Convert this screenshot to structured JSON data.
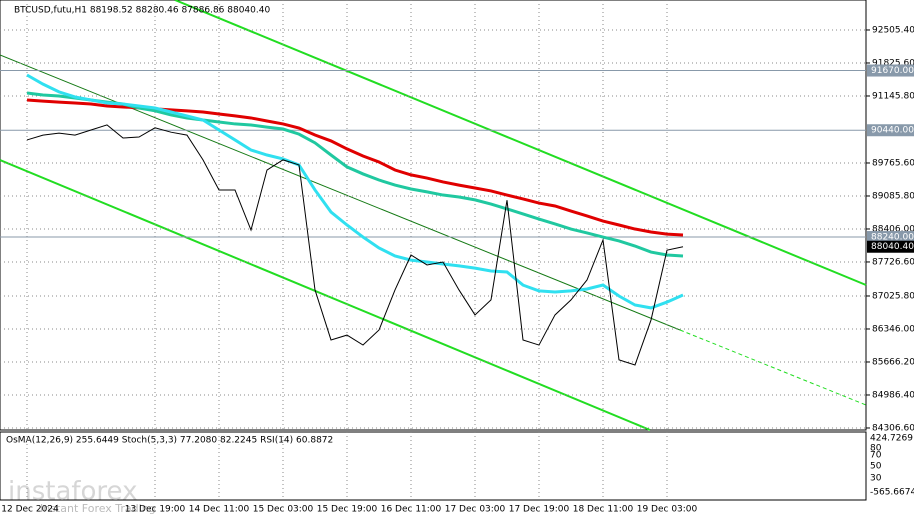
{
  "chart_data": {
    "type": "line",
    "title": "BTCUSD,futu,H1  88198.52 88280.46 87886.86 88040.40",
    "categories": [
      "12 Dec 2024",
      null,
      null,
      null,
      null,
      null,
      null,
      null,
      "13 Dec 19:00",
      null,
      null,
      null,
      "14 Dec 11:00",
      null,
      null,
      null,
      "15 Dec 03:00",
      null,
      null,
      null,
      "15 Dec 19:00",
      null,
      null,
      null,
      "16 Dec 11:00",
      null,
      null,
      null,
      "17 Dec 03:00",
      null,
      null,
      null,
      "17 Dec 19:00",
      null,
      null,
      null,
      "18 Dec 11:00",
      null,
      null,
      null,
      "19 Dec 03:00",
      null
    ],
    "values": [
      90240,
      90340,
      90380,
      90340,
      90445,
      90550,
      90280,
      90300,
      90490,
      90400,
      90340,
      89830,
      89210,
      89210,
      88385,
      89620,
      89830,
      89725,
      87150,
      86120,
      86220,
      86015,
      86325,
      87150,
      87870,
      87665,
      87725,
      87150,
      86635,
      86945,
      89000,
      86120,
      86015,
      86635,
      86945,
      87355,
      88180,
      85710,
      85605,
      86530,
      87970,
      88040.4
    ],
    "color": "#000000",
    "series": [
      {
        "color": "#e00000",
        "values": [
          91063,
          91040,
          91020,
          91000,
          90980,
          90940,
          90920,
          90900,
          90880,
          90860,
          90840,
          90816,
          90775,
          90735,
          90693,
          90630,
          90570,
          90486,
          90342,
          90220,
          90055,
          89910,
          89786,
          89621,
          89520,
          89455,
          89375,
          89310,
          89250,
          89190,
          89105,
          89025,
          88940,
          88880,
          88775,
          88675,
          88570,
          88488,
          88405,
          88344,
          88300,
          88282
        ]
      },
      {
        "color": "#20c8a0",
        "values": [
          91207,
          91165,
          91145,
          91105,
          91063,
          91020,
          90980,
          90898,
          90840,
          90755,
          90693,
          90651,
          90610,
          90570,
          90548,
          90505,
          90465,
          90360,
          90180,
          89930,
          89685,
          89540,
          89415,
          89310,
          89230,
          89170,
          89105,
          89065,
          89005,
          88920,
          88820,
          88715,
          88610,
          88510,
          88405,
          88325,
          88240,
          88160,
          88055,
          87930,
          87870,
          87850
        ]
      },
      {
        "color": "#30e0f0",
        "values": [
          91578,
          91390,
          91230,
          91125,
          91063,
          91000,
          90980,
          90940,
          90898,
          90816,
          90735,
          90651,
          90445,
          90240,
          90033,
          89930,
          89850,
          89725,
          89210,
          88755,
          88488,
          88240,
          88015,
          87850,
          87765,
          87725,
          87685,
          87645,
          87600,
          87540,
          87520,
          87250,
          87130,
          87108,
          87130,
          87170,
          87252,
          87025,
          86840,
          86780,
          86900,
          87046
        ]
      }
    ],
    "ylim": [
      84265,
      93123
    ],
    "yticks": [
      {
        "value": 92505.4,
        "label": "92505.40"
      },
      {
        "value": 91825.6,
        "label": "91825.60"
      },
      {
        "value": 91145.8,
        "label": "91145.80"
      },
      {
        "value": 89765.6,
        "label": "89765.60"
      },
      {
        "value": 89085.8,
        "label": "89085.80"
      },
      {
        "value": 88406,
        "label": "88406.00"
      },
      {
        "value": 87726.6,
        "label": "87726.60"
      },
      {
        "value": 87025.8,
        "label": "87025.80"
      },
      {
        "value": 86346,
        "label": "86346.00"
      },
      {
        "value": 85666.2,
        "label": "85666.20"
      },
      {
        "value": 84986.4,
        "label": "84986.40"
      },
      {
        "value": 84306.6,
        "label": "84306.60"
      }
    ],
    "levels": [
      {
        "value": 91670,
        "label": "91670.00"
      },
      {
        "value": 90440,
        "label": "90440.00"
      },
      {
        "value": 88240,
        "label": "88240.00"
      }
    ],
    "last_price": {
      "value": 88040.4,
      "label": "88040.40"
    },
    "grid": true,
    "oscillator": {
      "title": "OsMA(12,26,9) 255.6449  Stoch(5,3,3) 77.2080 82.2245  RSI(14) 60.8872",
      "tick_labels": [
        "424.7269",
        "80",
        "70",
        "50",
        "30",
        "-565.6674"
      ]
    },
    "watermark": {
      "brand": "instaforex",
      "slogan": "Instant Forex Trading"
    }
  }
}
